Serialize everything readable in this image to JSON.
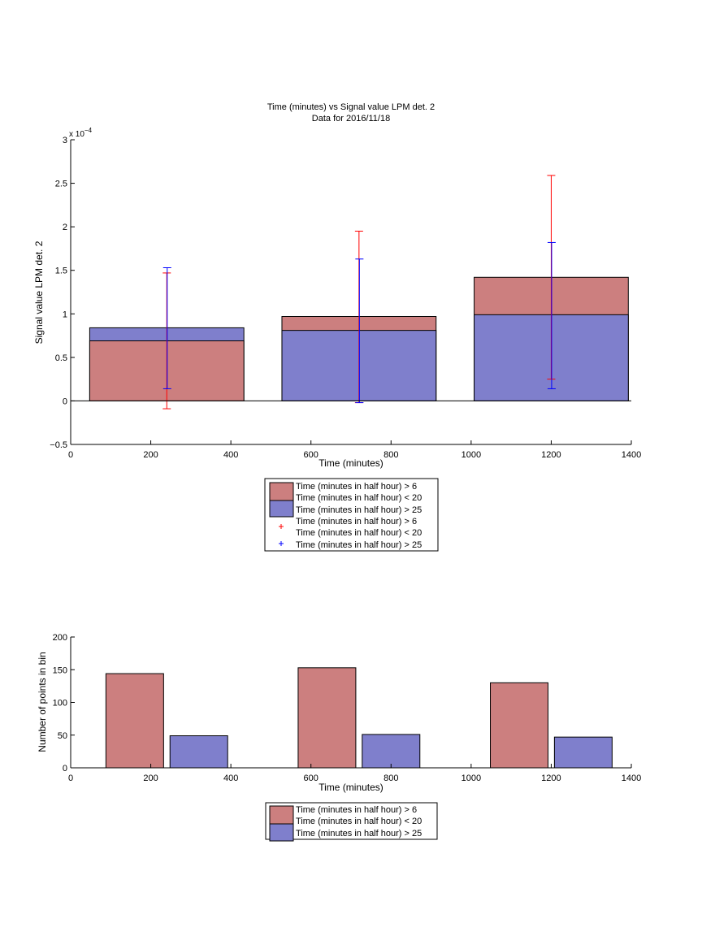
{
  "chart_data": [
    {
      "type": "bar",
      "title": "Time (minutes) vs Signal value LPM det. 2",
      "subtitle": "Data for 2016/11/18",
      "xlabel": "Time (minutes)",
      "ylabel": "Signal value LPM det. 2",
      "exponent_base": "x 10",
      "exponent_power": "−4",
      "xlim": [
        0,
        1400
      ],
      "ylim": [
        -0.5,
        3
      ],
      "xticks": [
        0,
        200,
        400,
        600,
        800,
        1000,
        1200,
        1400
      ],
      "yticks": [
        -0.5,
        0,
        0.5,
        1,
        1.5,
        2,
        2.5,
        3
      ],
      "ytick_labels": [
        "−0.5",
        "0",
        "0.5",
        "1",
        "1.5",
        "2",
        "2.5",
        "3"
      ],
      "bar_centers": [
        240,
        720,
        1200
      ],
      "bar_width": 385,
      "series": [
        {
          "name": "Time (minutes in half hour) > 6",
          "name_line2": "Time (minutes in half hour) < 20",
          "color": "#cc7f7f",
          "values": [
            0.69,
            0.97,
            1.42
          ]
        },
        {
          "name": "Time (minutes in half hour) > 25",
          "color": "#7f7fcc",
          "values": [
            0.84,
            0.81,
            0.99
          ]
        }
      ],
      "errorbars": [
        {
          "name": "Time (minutes in half hour) > 6",
          "name_line2": "Time (minutes in half hour) < 20",
          "color": "#ff0000",
          "x": [
            240,
            720,
            1200
          ],
          "low": [
            -0.09,
            -0.02,
            0.25
          ],
          "high": [
            1.47,
            1.95,
            2.59
          ]
        },
        {
          "name": "Time (minutes in half hour) > 25",
          "color": "#0000ff",
          "x": [
            240,
            720,
            1200
          ],
          "low": [
            0.14,
            -0.02,
            0.14
          ],
          "high": [
            1.53,
            1.63,
            1.82
          ]
        }
      ],
      "legend_position": "below-plot"
    },
    {
      "type": "bar",
      "title": "",
      "xlabel": "Time (minutes)",
      "ylabel": "Number of points in bin",
      "xlim": [
        0,
        1400
      ],
      "ylim": [
        0,
        200
      ],
      "xticks": [
        0,
        200,
        400,
        600,
        800,
        1000,
        1200,
        1400
      ],
      "yticks": [
        0,
        50,
        100,
        150,
        200
      ],
      "series": [
        {
          "name": "Time (minutes in half hour) > 6",
          "name_line2": "Time (minutes in half hour) < 20",
          "color": "#cc7f7f",
          "x": [
            160,
            640,
            1120
          ],
          "values": [
            144,
            153,
            130
          ]
        },
        {
          "name": "Time (minutes in half hour) > 25",
          "color": "#7f7fcc",
          "x": [
            320,
            800,
            1280
          ],
          "values": [
            49,
            51,
            47
          ]
        }
      ],
      "bar_width": 144,
      "legend_position": "below-plot"
    }
  ]
}
